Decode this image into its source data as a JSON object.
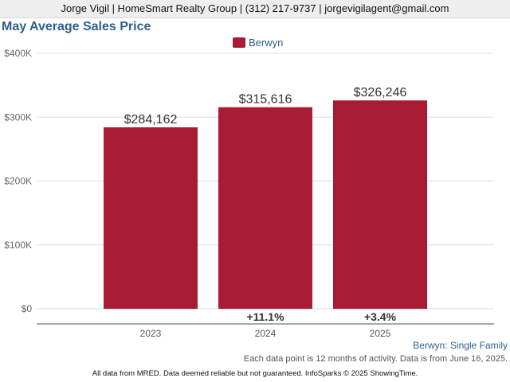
{
  "header": {
    "agent_line": "Jorge Vigil | HomeSmart Realty Group | (312) 217-9737 | jorgevigilagent@gmail.com"
  },
  "legend": {
    "series_name": "Berwyn",
    "color": "#a91b35"
  },
  "chart_data": {
    "type": "bar",
    "title": "May Average Sales Price",
    "categories": [
      "2023",
      "2024",
      "2025"
    ],
    "series": [
      {
        "name": "Berwyn",
        "values": [
          284162,
          315616,
          326246
        ],
        "value_labels": [
          "$284,162",
          "$315,616",
          "$326,246"
        ],
        "change_labels": [
          "",
          "+11.1%",
          "+3.4%"
        ]
      }
    ],
    "y_ticks": [
      {
        "value": 0,
        "label": "$0"
      },
      {
        "value": 100000,
        "label": "$100K"
      },
      {
        "value": 200000,
        "label": "$200K"
      },
      {
        "value": 300000,
        "label": "$300K"
      },
      {
        "value": 400000,
        "label": "$400K"
      }
    ],
    "ylim": [
      0,
      400000
    ],
    "grid": true,
    "legend_position": "top-center",
    "bar_color": "#a91b35",
    "subtitle": "Berwyn: Single Family"
  },
  "notes": {
    "data_note": "Each data point is 12 months of activity. Data is from June 16, 2025.",
    "footer": "All data from MRED. Data deemed reliable but not guaranteed. InfoSparks © 2025 ShowingTime."
  }
}
